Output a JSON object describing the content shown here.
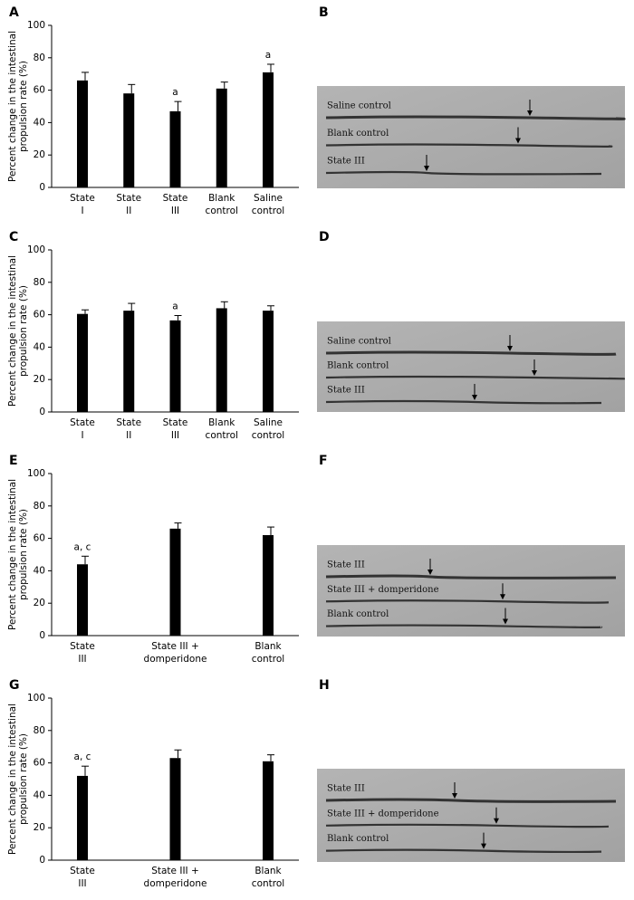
{
  "chart_data": [
    {
      "type": "bar",
      "panel": "A",
      "ylabel": [
        "Percent change in the intestinal",
        "propulsion rate (%)"
      ],
      "categories": [
        [
          "State",
          "I"
        ],
        [
          "State",
          "II"
        ],
        [
          "State",
          "III"
        ],
        [
          "Blank",
          "control"
        ],
        [
          "Saline",
          "control"
        ]
      ],
      "values": [
        66,
        58,
        47,
        61,
        71
      ],
      "errors": [
        5,
        5.5,
        6,
        4,
        5
      ],
      "bar_labels": [
        null,
        null,
        "a",
        null,
        "a"
      ],
      "color": "#000000",
      "ylim": [
        0,
        100
      ],
      "yticks": [
        0,
        20,
        40,
        60,
        80,
        100
      ]
    },
    {
      "type": "bar",
      "panel": "C",
      "ylabel": [
        "Percent change in the intestinal",
        "propulsion rate (%)"
      ],
      "categories": [
        [
          "State",
          "I"
        ],
        [
          "State",
          "II"
        ],
        [
          "State",
          "III"
        ],
        [
          "Blank",
          "control"
        ],
        [
          "Saline",
          "control"
        ]
      ],
      "values": [
        60.5,
        62.5,
        56.5,
        64,
        62.5
      ],
      "errors": [
        2.5,
        4.5,
        3,
        4,
        3
      ],
      "bar_labels": [
        null,
        null,
        "a",
        null,
        null
      ],
      "color": "#000000",
      "ylim": [
        0,
        100
      ],
      "yticks": [
        0,
        20,
        40,
        60,
        80,
        100
      ]
    },
    {
      "type": "bar",
      "panel": "E",
      "ylabel": [
        "Percent change in the intestinal",
        "propulsion rate (%)"
      ],
      "categories": [
        [
          "State",
          "III"
        ],
        [
          "State III +",
          "domperidone"
        ],
        [
          "Blank",
          "control"
        ]
      ],
      "values": [
        44,
        66,
        62
      ],
      "errors": [
        5,
        3.5,
        5
      ],
      "bar_labels": [
        "a, c",
        null,
        null
      ],
      "color": "#000000",
      "ylim": [
        0,
        100
      ],
      "yticks": [
        0,
        20,
        40,
        60,
        80,
        100
      ]
    },
    {
      "type": "bar",
      "panel": "G",
      "ylabel": [
        "Percent change in the intestinal",
        "propulsion rate (%)"
      ],
      "categories": [
        [
          "State",
          "III"
        ],
        [
          "State III +",
          "domperidone"
        ],
        [
          "Blank",
          "control"
        ]
      ],
      "values": [
        52,
        63,
        61
      ],
      "errors": [
        6,
        5,
        4
      ],
      "bar_labels": [
        "a, c",
        null,
        null
      ],
      "color": "#000000",
      "ylim": [
        0,
        100
      ],
      "yticks": [
        0,
        20,
        40,
        60,
        80,
        100
      ]
    }
  ],
  "images": [
    {
      "panel": "B",
      "labels": [
        "Saline control",
        "Blank control",
        "State III"
      ]
    },
    {
      "panel": "D",
      "labels": [
        "Saline control",
        "Blank control",
        "State III"
      ]
    },
    {
      "panel": "F",
      "labels": [
        "State III",
        "State III + domperidone",
        "Blank control"
      ]
    },
    {
      "panel": "H",
      "labels": [
        "State III",
        "State III + domperidone",
        "Blank control"
      ]
    }
  ]
}
